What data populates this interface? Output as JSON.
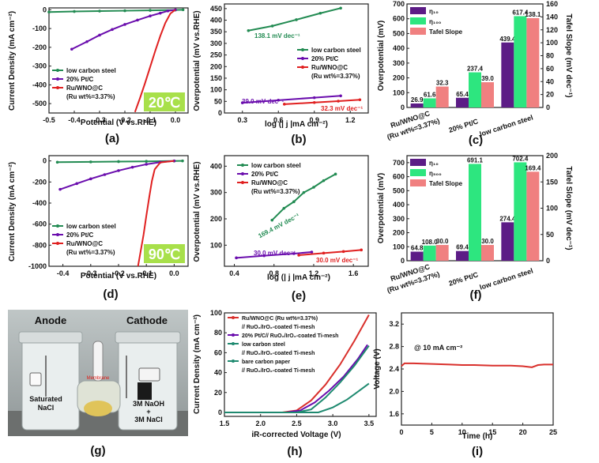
{
  "colors": {
    "black": "#222222",
    "green": "#228b52",
    "purple": "#6a0dad",
    "red": "#e02020",
    "pink": "#f08080",
    "mint": "#2de67f",
    "violet": "#5c1c86",
    "badge": "#a8e04a",
    "line_red": "#d9302c"
  },
  "panels": {
    "a": {
      "label": "(a)",
      "xlabel": "Potential (V vs.RHE)",
      "ylabel": "Current Density (mA cm⁻²)",
      "badge": "20℃",
      "xticks": [
        "-0.5",
        "-0.4",
        "-0.3",
        "-0.2",
        "-0.1",
        "0.0"
      ],
      "yticks": [
        "0",
        "-100",
        "-200",
        "-300",
        "-400",
        "-500"
      ],
      "legend": [
        "low carbon steel",
        "20% Pt/C",
        "Ru/WNO@C",
        "(Ru wt%=3.37%)"
      ]
    },
    "b": {
      "label": "(b)",
      "xlabel": "log (| j |mA cm⁻²)",
      "ylabel": "Overpotential (mV vs.RHE)",
      "xticks": [
        "0.3",
        "0.6",
        "0.9",
        "1.2"
      ],
      "yticks": [
        "0",
        "50",
        "100",
        "150",
        "200",
        "250",
        "300",
        "350",
        "400",
        "450"
      ],
      "legend": [
        "low carbon steel",
        "20% Pt/C",
        "Ru/WNO@C",
        "(Ru wt%=3.37%)"
      ],
      "annotations": [
        "138.1 mV dec⁻¹",
        "39.0 mV dec⁻¹",
        "32.3 mV dec⁻¹"
      ]
    },
    "c": {
      "label": "(c)",
      "ylabel": "Overpotential (mV)",
      "y2label": "Tafel Slope (mV dec⁻¹)",
      "yticks": [
        "0",
        "100",
        "200",
        "300",
        "400",
        "500",
        "600",
        "700"
      ],
      "y2ticks": [
        "0",
        "20",
        "40",
        "60",
        "80",
        "100",
        "120",
        "140",
        "160"
      ],
      "legend": [
        "η₁₀",
        "η₁₀₀",
        "Tafel Slope"
      ],
      "categories": [
        "Ru/WNO@C",
        "(Ru wt%=3.37%)",
        "20% Pt/C",
        "low carbon steel"
      ],
      "value_labels": [
        [
          "26.9",
          "61.6",
          "32.3"
        ],
        [
          "65.4",
          "237.4",
          "39.0"
        ],
        [
          "439.4",
          "617.4",
          "138.1"
        ]
      ]
    },
    "d": {
      "label": "(d)",
      "xlabel": "Potential (V vs.RHE)",
      "ylabel": "Current Density (mA cm⁻²)",
      "badge": "90℃",
      "xticks": [
        "-0.4",
        "-0.3",
        "-0.2",
        "-0.1",
        "0.0"
      ],
      "yticks": [
        "0",
        "-200",
        "-400",
        "-600",
        "-800",
        "-1000"
      ],
      "legend": [
        "low carbon steel",
        "20% Pt/C",
        "Ru/WNO@C",
        "(Ru wt%=3.37%)"
      ]
    },
    "e": {
      "label": "(e)",
      "xlabel": "log (| j |mA cm⁻²)",
      "ylabel": "Overpotential (mV vs.RHE)",
      "xticks": [
        "0.4",
        "0.8",
        "1.2",
        "1.6"
      ],
      "yticks": [
        "100",
        "200",
        "300",
        "400"
      ],
      "legend": [
        "low carbon steel",
        "20% Pt/C",
        "Ru/WNO@C",
        "(Ru wt%=3.37%)"
      ],
      "annotations": [
        "169.4 mV dec⁻¹",
        "30.0 mV dec⁻¹",
        "30.0 mV dec⁻¹"
      ]
    },
    "f": {
      "label": "(f)",
      "ylabel": "Overpotential (mV)",
      "y2label": "Tafel Slope (mV dec⁻¹)",
      "yticks": [
        "0",
        "100",
        "200",
        "300",
        "400",
        "500",
        "600",
        "700"
      ],
      "y2ticks": [
        "0",
        "50",
        "100",
        "150",
        "200"
      ],
      "legend": [
        "η₁₀",
        "η₅₀₀",
        "Tafel Slope"
      ],
      "categories": [
        "Ru/WNO@C",
        "(Ru wt%=3.37%)",
        "20% Pt/C",
        "low carbon steel"
      ],
      "value_labels": [
        [
          "64.8",
          "108.0",
          "30.0"
        ],
        [
          "69.4",
          "691.1",
          "30.0"
        ],
        [
          "274.4",
          "702.4",
          "169.4"
        ]
      ]
    },
    "g": {
      "label": "(g)",
      "anode": "Anode",
      "cathode": "Cathode",
      "left_solution": [
        "Saturated",
        "NaCl"
      ],
      "right_solution": [
        "3M NaOH",
        "+",
        "3M NaCl"
      ],
      "membrane": "Membrane"
    },
    "h": {
      "label": "(h)",
      "xlabel": "iR-corrected Voltage (V)",
      "ylabel": "Current Density (mA cm⁻²)",
      "xticks": [
        "1.5",
        "2.0",
        "2.5",
        "3.0",
        "3.5"
      ],
      "yticks": [
        "0",
        "20",
        "40",
        "60",
        "80",
        "100"
      ],
      "legend": [
        "Ru/WNO@C (Ru wt%=3.37%)",
        "// RuO₂/IrO₂-coated Ti-mesh",
        "20% Pt/C// RuO₂/IrO₂-coated Ti-mesh",
        "low carbon steel",
        "// RuO₂/IrO₂-coated Ti-mesh",
        "bare carbon paper",
        "// RuO₂/IrO₂-coated Ti-mesh"
      ]
    },
    "i": {
      "label": "(i)",
      "xlabel": "Time (h)",
      "ylabel": "Voltage (V)",
      "annotation": "@ 10 mA cm⁻²",
      "xticks": [
        "0",
        "5",
        "10",
        "15",
        "20",
        "25"
      ],
      "yticks": [
        "1.6",
        "2.0",
        "2.4",
        "2.8",
        "3.2"
      ]
    }
  },
  "chart_data": [
    {
      "panel": "a",
      "type": "line",
      "xlim": [
        -0.5,
        0.05
      ],
      "ylim": [
        -550,
        10
      ],
      "series": [
        {
          "name": "low carbon steel",
          "x": [
            -0.5,
            -0.4,
            -0.3,
            -0.2,
            -0.1,
            0.0,
            0.03
          ],
          "y": [
            -12,
            -9,
            -7,
            -5,
            -3,
            -1,
            0
          ]
        },
        {
          "name": "20% Pt/C",
          "x": [
            -0.41,
            -0.35,
            -0.3,
            -0.25,
            -0.2,
            -0.15,
            -0.1,
            -0.06,
            -0.03,
            0.0
          ],
          "y": [
            -210,
            -170,
            -135,
            -105,
            -78,
            -55,
            -33,
            -18,
            -6,
            0
          ]
        },
        {
          "name": "Ru/WNO@C (Ru wt%=3.37%)",
          "x": [
            -0.16,
            -0.14,
            -0.12,
            -0.1,
            -0.08,
            -0.06,
            -0.04,
            -0.02,
            0.0
          ],
          "y": [
            -545,
            -470,
            -390,
            -305,
            -220,
            -140,
            -70,
            -20,
            0
          ]
        }
      ]
    },
    {
      "panel": "b",
      "type": "line",
      "xlim": [
        0.15,
        1.35
      ],
      "ylim": [
        0,
        470
      ],
      "series": [
        {
          "name": "low carbon steel",
          "x": [
            0.35,
            0.55,
            0.75,
            0.95,
            1.12
          ],
          "y": [
            355,
            375,
            402,
            430,
            452
          ]
        },
        {
          "name": "20% Pt/C",
          "x": [
            0.3,
            0.6,
            0.9,
            1.12
          ],
          "y": [
            44,
            55,
            66,
            74
          ]
        },
        {
          "name": "Ru/WNO@C (Ru wt%=3.37%)",
          "x": [
            0.65,
            0.9,
            1.1,
            1.28
          ],
          "y": [
            38,
            45,
            51,
            57
          ]
        }
      ]
    },
    {
      "panel": "c",
      "type": "bar",
      "categories": [
        "Ru/WNO@C (Ru wt%=3.37%)",
        "20% Pt/C",
        "low carbon steel"
      ],
      "ylim": [
        0,
        700
      ],
      "y2lim": [
        0,
        160
      ],
      "series": [
        {
          "name": "η10",
          "values": [
            26.9,
            65.4,
            439.4
          ]
        },
        {
          "name": "η100",
          "values": [
            61.6,
            237.4,
            617.4
          ]
        },
        {
          "name": "Tafel Slope",
          "values": [
            32.3,
            39.0,
            138.1
          ],
          "axis": "right"
        }
      ]
    },
    {
      "panel": "d",
      "type": "line",
      "xlim": [
        -0.45,
        0.05
      ],
      "ylim": [
        -1000,
        50
      ],
      "series": [
        {
          "name": "low carbon steel",
          "x": [
            -0.42,
            -0.3,
            -0.2,
            -0.1,
            0.0,
            0.03
          ],
          "y": [
            -12,
            -9,
            -6,
            -4,
            -1,
            0
          ]
        },
        {
          "name": "20% Pt/C",
          "x": [
            -0.41,
            -0.35,
            -0.3,
            -0.25,
            -0.2,
            -0.15,
            -0.1,
            -0.05,
            0.0
          ],
          "y": [
            -270,
            -215,
            -170,
            -130,
            -92,
            -60,
            -32,
            -12,
            0
          ]
        },
        {
          "name": "Ru/WNO@C (Ru wt%=3.37%)",
          "x": [
            -0.13,
            -0.12,
            -0.11,
            -0.1,
            -0.09,
            -0.08,
            -0.07,
            -0.05,
            0.0
          ],
          "y": [
            -1000,
            -850,
            -700,
            -520,
            -350,
            -190,
            -80,
            -15,
            0
          ]
        }
      ]
    },
    {
      "panel": "e",
      "type": "line",
      "xlim": [
        0.3,
        1.75
      ],
      "ylim": [
        20,
        440
      ],
      "series": [
        {
          "name": "low carbon steel",
          "x": [
            0.78,
            0.9,
            1.0,
            1.1,
            1.2,
            1.3,
            1.42
          ],
          "y": [
            195,
            240,
            265,
            300,
            320,
            345,
            370
          ]
        },
        {
          "name": "20% Pt/C",
          "x": [
            0.42,
            0.7,
            1.0,
            1.18
          ],
          "y": [
            52,
            60,
            68,
            74
          ]
        },
        {
          "name": "Ru/WNO@C (Ru wt%=3.37%)",
          "x": [
            1.05,
            1.3,
            1.5,
            1.68
          ],
          "y": [
            62,
            70,
            76,
            82
          ]
        }
      ]
    },
    {
      "panel": "f",
      "type": "bar",
      "categories": [
        "Ru/WNO@C (Ru wt%=3.37%)",
        "20% Pt/C",
        "low carbon steel"
      ],
      "ylim": [
        0,
        750
      ],
      "y2lim": [
        0,
        200
      ],
      "series": [
        {
          "name": "η10",
          "values": [
            64.8,
            69.4,
            274.4
          ]
        },
        {
          "name": "η500",
          "values": [
            108.0,
            691.1,
            702.4
          ]
        },
        {
          "name": "Tafel Slope",
          "values": [
            30.0,
            30.0,
            169.4
          ],
          "axis": "right"
        }
      ]
    },
    {
      "panel": "h",
      "type": "line",
      "xlim": [
        1.5,
        3.6
      ],
      "ylim": [
        -4,
        100
      ],
      "series": [
        {
          "name": "Ru/WNO@C (Ru wt%=3.37%) // RuO₂/IrO₂-coated Ti-mesh",
          "x": [
            1.5,
            2.3,
            2.5,
            2.7,
            2.9,
            3.1,
            3.3,
            3.5
          ],
          "y": [
            0,
            0,
            2,
            12,
            28,
            48,
            72,
            98
          ]
        },
        {
          "name": "20% Pt/C// RuO₂/IrO₂-coated Ti-mesh",
          "x": [
            1.5,
            2.35,
            2.55,
            2.75,
            2.95,
            3.15,
            3.35,
            3.48
          ],
          "y": [
            0,
            0,
            2,
            10,
            22,
            36,
            54,
            68
          ]
        },
        {
          "name": "low carbon steel // RuO₂/IrO₂-coated Ti-mesh",
          "x": [
            1.5,
            2.5,
            2.7,
            2.9,
            3.1,
            3.3,
            3.5
          ],
          "y": [
            0,
            0,
            3,
            15,
            30,
            47,
            67
          ]
        },
        {
          "name": "bare carbon paper // RuO₂/IrO₂-coated Ti-mesh",
          "x": [
            1.5,
            2.8,
            3.0,
            3.2,
            3.35,
            3.5
          ],
          "y": [
            0,
            0,
            5,
            13,
            21,
            29
          ]
        }
      ]
    },
    {
      "panel": "i",
      "type": "line",
      "xlim": [
        0,
        25
      ],
      "ylim": [
        1.4,
        3.4
      ],
      "series": [
        {
          "name": "@ 10 mA cm⁻²",
          "x": [
            0,
            0.5,
            2,
            5,
            8,
            10,
            12,
            15,
            18,
            20,
            21.5,
            22.5,
            23.5,
            25
          ],
          "y": [
            2.45,
            2.5,
            2.5,
            2.49,
            2.48,
            2.47,
            2.47,
            2.46,
            2.46,
            2.45,
            2.43,
            2.47,
            2.48,
            2.48
          ]
        }
      ]
    }
  ]
}
